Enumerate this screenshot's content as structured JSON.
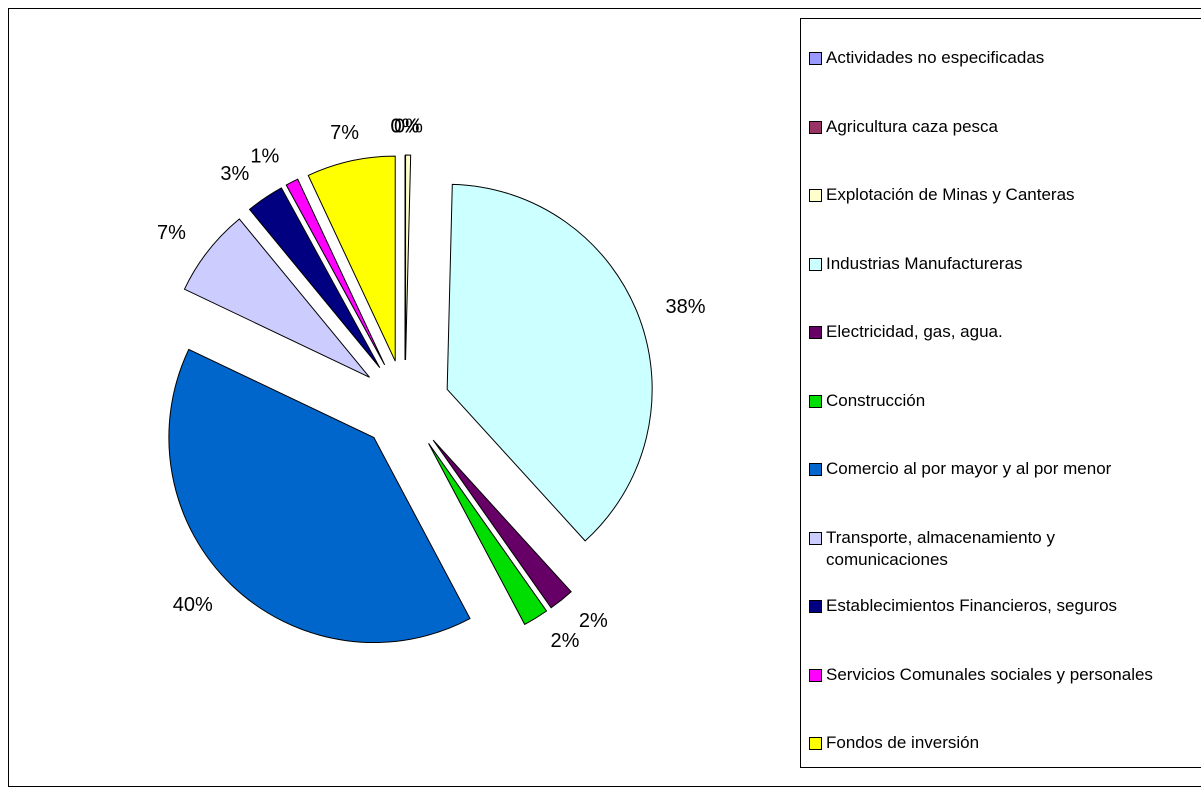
{
  "chart_data": {
    "type": "pie",
    "categories": [
      "Actividades no especificadas",
      "Agricultura caza pesca",
      "Explotación de Minas y Canteras",
      "Industrias Manufactureras",
      "Electricidad, gas, agua.",
      "Construcción",
      "Comercio al por mayor y al por menor",
      "Transporte, almacenamiento y comunicaciones",
      "Establecimientos Financieros, seguros",
      "Servicios Comunales sociales y personales",
      "Fondos de inversión"
    ],
    "values": [
      0,
      0,
      0.4,
      38,
      2,
      2,
      40,
      7,
      3,
      1,
      7
    ],
    "value_labels": [
      "0%",
      "0%",
      "0%",
      "38%",
      "2%",
      "2%",
      "40%",
      "7%",
      "3%",
      "1%",
      "7%"
    ],
    "colors": [
      "#9999ff",
      "#993366",
      "#ffffcc",
      "#ccffff",
      "#660066",
      "#00dd00",
      "#0066cc",
      "#ccccff",
      "#000080",
      "#ff00ff",
      "#ffff00"
    ],
    "exploded": true,
    "legend": "right"
  }
}
